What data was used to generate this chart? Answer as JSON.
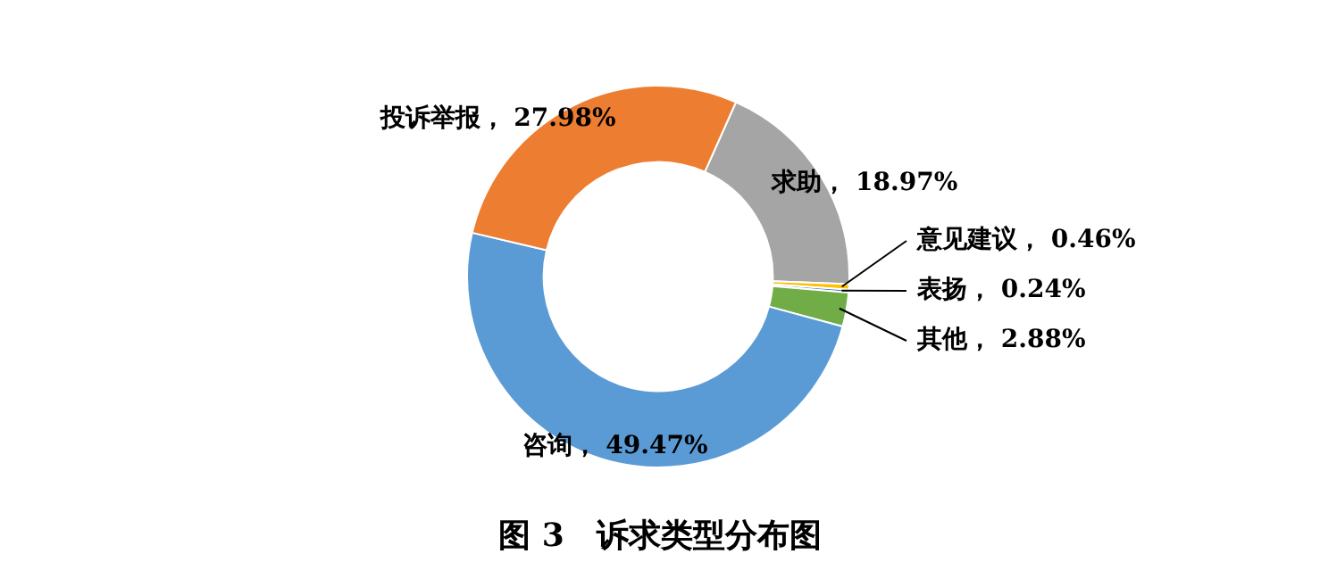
{
  "chart_data": {
    "type": "donut",
    "title": "图 3　诉求类型分布图",
    "categories": [
      "求助",
      "意见建议",
      "表扬",
      "其他",
      "咨询",
      "投诉举报"
    ],
    "values": [
      18.97,
      0.46,
      0.24,
      2.88,
      49.47,
      27.98
    ],
    "colors": [
      "#a5a5a5",
      "#ffc000",
      "#4472c4",
      "#70ad47",
      "#5b9bd5",
      "#ed7d31"
    ],
    "value_labels": [
      "18.97%",
      "0.46%",
      "0.24%",
      "2.88%",
      "49.47%",
      "27.98%"
    ],
    "legend": false
  }
}
